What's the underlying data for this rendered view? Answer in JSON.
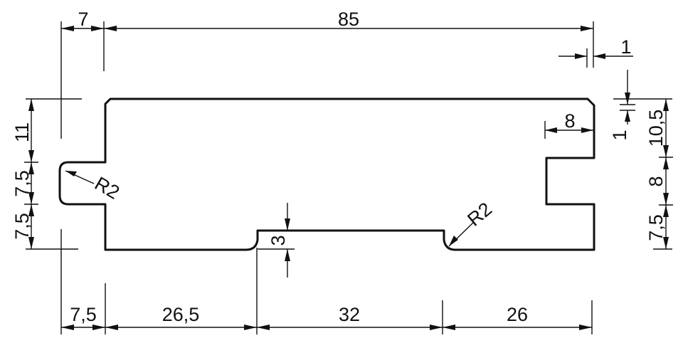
{
  "dimensions": {
    "top_overall": "85",
    "top_left": "7",
    "top_right_small": "1",
    "right_small_vertical": "1",
    "right_inner_width": "8",
    "right_upper": "10,5",
    "right_middle": "8",
    "right_lower": "7,5",
    "left_upper": "11",
    "left_middle": "7,5",
    "left_lower": "7,5",
    "radius_left": "R2",
    "radius_right": "R2",
    "groove_depth": "3",
    "bottom_1": "7,5",
    "bottom_2": "26,5",
    "bottom_3": "32",
    "bottom_4": "26"
  }
}
